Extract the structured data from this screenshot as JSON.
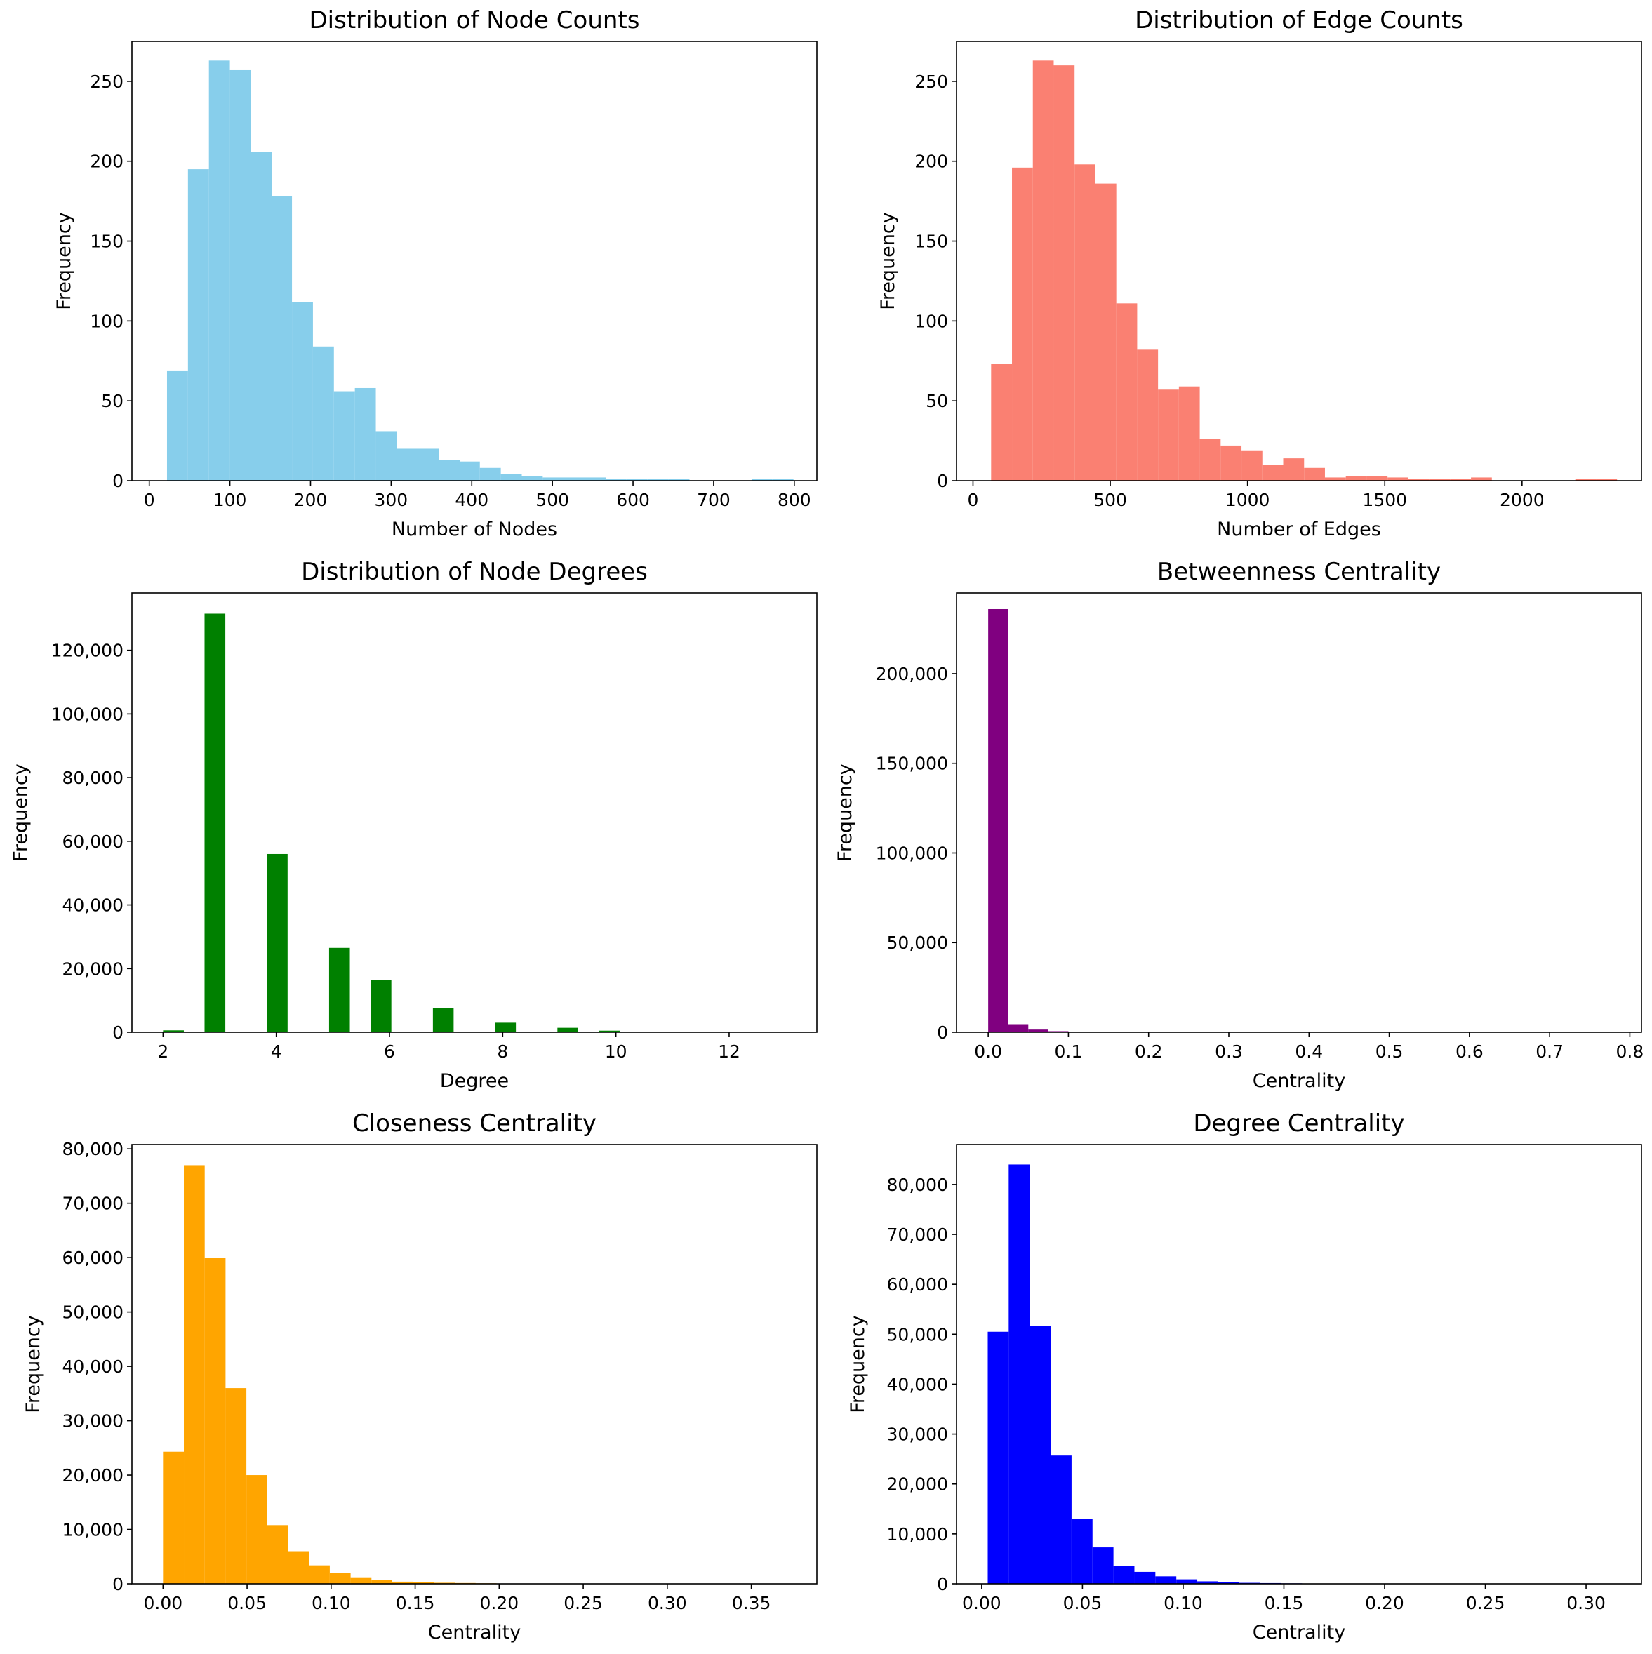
{
  "chart_data": [
    {
      "type": "histogram",
      "title": "Distribution of Node Counts",
      "xlabel": "Number of Nodes",
      "ylabel": "Frequency",
      "color": "#87ceeb",
      "xlim": [
        -21.5,
        828
      ],
      "ylim": [
        0,
        275
      ],
      "xticks": [
        0,
        100,
        200,
        300,
        400,
        500,
        600,
        700,
        800
      ],
      "yticks": [
        0,
        50,
        100,
        150,
        200,
        250
      ],
      "bin_edges": [
        22,
        48,
        74,
        100,
        126,
        152,
        177,
        203,
        229,
        255,
        281,
        307,
        333,
        359,
        385,
        410,
        436,
        462,
        488,
        514,
        540,
        566,
        592,
        618,
        644,
        670,
        695,
        721,
        747,
        773,
        799
      ],
      "values": [
        69,
        195,
        263,
        257,
        206,
        178,
        112,
        84,
        56,
        58,
        31,
        20,
        20,
        13,
        12,
        8,
        4,
        3,
        2,
        2,
        2,
        1,
        1,
        1,
        1,
        0,
        0,
        0,
        1,
        1
      ]
    },
    {
      "type": "histogram",
      "title": "Distribution of Edge Counts",
      "xlabel": "Number of Edges",
      "ylabel": "Frequency",
      "color": "#fa8072",
      "xlim": [
        -60,
        2435
      ],
      "ylim": [
        0,
        275
      ],
      "xticks": [
        0,
        500,
        1000,
        1500,
        2000
      ],
      "yticks": [
        0,
        50,
        100,
        150,
        200,
        250
      ],
      "bin_edges": [
        66,
        142,
        218,
        294,
        370,
        446,
        522,
        598,
        674,
        750,
        826,
        902,
        978,
        1054,
        1130,
        1206,
        1282,
        1358,
        1434,
        1510,
        1586,
        1662,
        1738,
        1814,
        1890,
        1966,
        2042,
        2118,
        2194,
        2270,
        2346
      ],
      "values": [
        73,
        196,
        263,
        260,
        198,
        186,
        111,
        82,
        57,
        59,
        26,
        22,
        19,
        10,
        14,
        8,
        2,
        3,
        3,
        2,
        1,
        1,
        1,
        2,
        0,
        0,
        0,
        0,
        1,
        1
      ]
    },
    {
      "type": "histogram",
      "title": "Distribution of Node Degrees",
      "xlabel": "Degree",
      "ylabel": "Frequency",
      "color": "#008000",
      "xlim": [
        1.45,
        13.55
      ],
      "ylim": [
        0,
        138000
      ],
      "xticks": [
        2,
        4,
        6,
        8,
        10,
        12
      ],
      "yticks": [
        0,
        20000,
        40000,
        60000,
        80000,
        100000,
        120000
      ],
      "ytick_labels": [
        "0",
        "20,000",
        "40,000",
        "60,000",
        "80,000",
        "100,000",
        "120,000"
      ],
      "bin_edges": [
        2.0,
        2.367,
        2.733,
        3.1,
        3.467,
        3.833,
        4.2,
        4.567,
        4.933,
        5.3,
        5.667,
        6.033,
        6.4,
        6.767,
        7.133,
        7.5,
        7.867,
        8.233,
        8.6,
        8.967,
        9.333,
        9.7,
        10.067,
        10.433,
        10.8,
        11.167,
        11.533,
        11.9,
        12.267,
        12.633,
        13.0
      ],
      "values": [
        600,
        0,
        131500,
        0,
        0,
        56000,
        0,
        0,
        26500,
        0,
        16500,
        0,
        0,
        7500,
        0,
        0,
        3000,
        0,
        0,
        1400,
        0,
        500,
        0,
        0,
        100,
        0,
        0,
        50,
        0,
        20
      ]
    },
    {
      "type": "histogram",
      "title": "Betweenness Centrality",
      "xlabel": "Centrality",
      "ylabel": "Frequency",
      "color": "#800080",
      "xlim": [
        -0.0395,
        0.8145
      ],
      "ylim": [
        0,
        245000
      ],
      "xticks": [
        0.0,
        0.1,
        0.2,
        0.3,
        0.4,
        0.5,
        0.6,
        0.7,
        0.8
      ],
      "xtick_labels": [
        "0.0",
        "0.1",
        "0.2",
        "0.3",
        "0.4",
        "0.5",
        "0.6",
        "0.7",
        "0.8"
      ],
      "yticks": [
        0,
        50000,
        100000,
        150000,
        200000
      ],
      "ytick_labels": [
        "0",
        "50,000",
        "100,000",
        "150,000",
        "200,000"
      ],
      "bin_edges": [
        0.0,
        0.025,
        0.05,
        0.075,
        0.1,
        0.125,
        0.15,
        0.175,
        0.2,
        0.225,
        0.25,
        0.275,
        0.3,
        0.325,
        0.35,
        0.375,
        0.4,
        0.425,
        0.45,
        0.475,
        0.5,
        0.525,
        0.55,
        0.575,
        0.6,
        0.625,
        0.65,
        0.675,
        0.7,
        0.725,
        0.775
      ],
      "values": [
        236000,
        4500,
        1500,
        600,
        200,
        100,
        50,
        30,
        20,
        10,
        5,
        5,
        3,
        2,
        1,
        1,
        1,
        0,
        0,
        0,
        0,
        0,
        0,
        0,
        0,
        0,
        0,
        0,
        0,
        0
      ]
    },
    {
      "type": "histogram",
      "title": "Closeness Centrality",
      "xlabel": "Centrality",
      "ylabel": "Frequency",
      "color": "#ffa500",
      "xlim": [
        -0.0185,
        0.389
      ],
      "ylim": [
        0,
        80800
      ],
      "xticks": [
        0.0,
        0.05,
        0.1,
        0.15,
        0.2,
        0.25,
        0.3,
        0.35
      ],
      "xtick_labels": [
        "0.00",
        "0.05",
        "0.10",
        "0.15",
        "0.20",
        "0.25",
        "0.30",
        "0.35"
      ],
      "yticks": [
        0,
        10000,
        20000,
        30000,
        40000,
        50000,
        60000,
        70000,
        80000
      ],
      "ytick_labels": [
        "0",
        "10,000",
        "20,000",
        "30,000",
        "40,000",
        "50,000",
        "60,000",
        "70,000",
        "80,000"
      ],
      "bin_edges": [
        0.0,
        0.0124,
        0.0248,
        0.0372,
        0.0496,
        0.062,
        0.0744,
        0.0868,
        0.0992,
        0.1116,
        0.124,
        0.1364,
        0.1488,
        0.1612,
        0.1736,
        0.186,
        0.1984,
        0.2108,
        0.2232,
        0.2356,
        0.248,
        0.2604,
        0.2728,
        0.2852,
        0.2976,
        0.31,
        0.3224,
        0.3348,
        0.3472,
        0.3596,
        0.372
      ],
      "values": [
        24300,
        77000,
        60000,
        36000,
        20000,
        10800,
        6000,
        3400,
        2000,
        1200,
        700,
        400,
        300,
        200,
        150,
        100,
        50,
        20,
        10,
        5,
        5,
        3,
        2,
        1,
        1,
        1,
        0,
        0,
        0,
        1
      ]
    },
    {
      "type": "histogram",
      "title": "Degree Centrality",
      "xlabel": "Centrality",
      "ylabel": "Frequency",
      "color": "#0000ff",
      "xlim": [
        -0.0125,
        0.3275
      ],
      "ylim": [
        0,
        88000
      ],
      "xticks": [
        0.0,
        0.05,
        0.1,
        0.15,
        0.2,
        0.25,
        0.3
      ],
      "xtick_labels": [
        "0.00",
        "0.05",
        "0.10",
        "0.15",
        "0.20",
        "0.25",
        "0.30"
      ],
      "yticks": [
        0,
        10000,
        20000,
        30000,
        40000,
        50000,
        60000,
        70000,
        80000
      ],
      "ytick_labels": [
        "0",
        "10,000",
        "20,000",
        "30,000",
        "40,000",
        "50,000",
        "60,000",
        "70,000",
        "80,000"
      ],
      "bin_edges": [
        0.003,
        0.0134,
        0.0238,
        0.0342,
        0.0446,
        0.055,
        0.0654,
        0.0758,
        0.0862,
        0.0966,
        0.107,
        0.1174,
        0.1278,
        0.1382,
        0.1486,
        0.159,
        0.1694,
        0.1798,
        0.1902,
        0.2006,
        0.211,
        0.2214,
        0.2318,
        0.2422,
        0.2526,
        0.263,
        0.2734,
        0.2838,
        0.2942,
        0.3046,
        0.315
      ],
      "values": [
        50500,
        84000,
        51700,
        25700,
        13000,
        7300,
        3600,
        2400,
        1500,
        900,
        500,
        300,
        200,
        150,
        100,
        60,
        30,
        20,
        10,
        5,
        5,
        3,
        2,
        1,
        1,
        1,
        0,
        0,
        0,
        1
      ]
    }
  ]
}
